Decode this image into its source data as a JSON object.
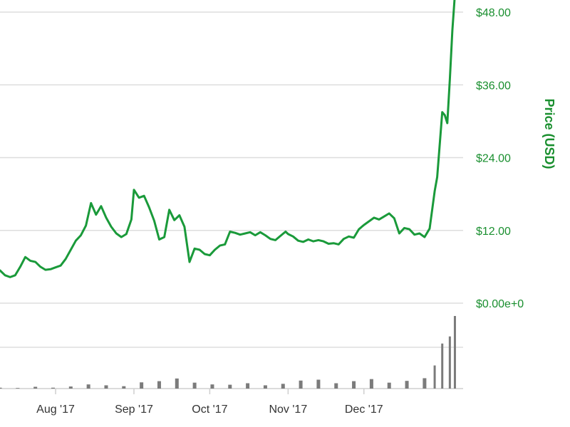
{
  "chart_data": {
    "type": "line",
    "ylabel": "Price (USD)",
    "price_axis": {
      "ticks": [
        0,
        12,
        24,
        36,
        48
      ],
      "tick_labels": [
        "$0.00e+0",
        "$12.00",
        "$24.00",
        "$36.00",
        "$48.00"
      ],
      "ylim": [
        0,
        50
      ]
    },
    "x_axis": {
      "ticks": [
        "2017-08-01",
        "2017-09-01",
        "2017-10-01",
        "2017-11-01",
        "2017-12-01"
      ],
      "tick_labels": [
        "Aug '17",
        "Sep '17",
        "Oct '17",
        "Nov '17",
        "Dec '17"
      ]
    },
    "grid": true,
    "series": [
      {
        "values": [
          [
            "2017-07-10",
            5.4
          ],
          [
            "2017-07-12",
            4.6
          ],
          [
            "2017-07-14",
            4.3
          ],
          [
            "2017-07-16",
            4.6
          ],
          [
            "2017-07-18",
            6.0
          ],
          [
            "2017-07-20",
            7.6
          ],
          [
            "2017-07-22",
            7.0
          ],
          [
            "2017-07-24",
            6.8
          ],
          [
            "2017-07-26",
            6.0
          ],
          [
            "2017-07-28",
            5.5
          ],
          [
            "2017-07-30",
            5.6
          ],
          [
            "2017-08-01",
            5.9
          ],
          [
            "2017-08-03",
            6.2
          ],
          [
            "2017-08-05",
            7.3
          ],
          [
            "2017-08-07",
            8.8
          ],
          [
            "2017-08-09",
            10.3
          ],
          [
            "2017-08-11",
            11.2
          ],
          [
            "2017-08-13",
            12.8
          ],
          [
            "2017-08-15",
            16.5
          ],
          [
            "2017-08-17",
            14.6
          ],
          [
            "2017-08-19",
            16.0
          ],
          [
            "2017-08-21",
            14.1
          ],
          [
            "2017-08-23",
            12.6
          ],
          [
            "2017-08-25",
            11.5
          ],
          [
            "2017-08-27",
            10.9
          ],
          [
            "2017-08-29",
            11.4
          ],
          [
            "2017-08-31",
            13.8
          ],
          [
            "2017-09-01",
            18.7
          ],
          [
            "2017-09-03",
            17.4
          ],
          [
            "2017-09-05",
            17.7
          ],
          [
            "2017-09-07",
            15.8
          ],
          [
            "2017-09-09",
            13.6
          ],
          [
            "2017-09-11",
            10.5
          ],
          [
            "2017-09-13",
            10.9
          ],
          [
            "2017-09-15",
            15.4
          ],
          [
            "2017-09-17",
            13.7
          ],
          [
            "2017-09-19",
            14.5
          ],
          [
            "2017-09-21",
            12.6
          ],
          [
            "2017-09-23",
            6.8
          ],
          [
            "2017-09-25",
            9.0
          ],
          [
            "2017-09-27",
            8.8
          ],
          [
            "2017-09-29",
            8.1
          ],
          [
            "2017-10-01",
            7.9
          ],
          [
            "2017-10-03",
            8.8
          ],
          [
            "2017-10-05",
            9.5
          ],
          [
            "2017-10-07",
            9.7
          ],
          [
            "2017-10-09",
            11.8
          ],
          [
            "2017-10-11",
            11.6
          ],
          [
            "2017-10-13",
            11.3
          ],
          [
            "2017-10-15",
            11.5
          ],
          [
            "2017-10-17",
            11.7
          ],
          [
            "2017-10-19",
            11.2
          ],
          [
            "2017-10-21",
            11.7
          ],
          [
            "2017-10-23",
            11.2
          ],
          [
            "2017-10-25",
            10.6
          ],
          [
            "2017-10-27",
            10.4
          ],
          [
            "2017-10-29",
            11.1
          ],
          [
            "2017-10-31",
            11.8
          ],
          [
            "2017-11-01",
            11.4
          ],
          [
            "2017-11-03",
            11.0
          ],
          [
            "2017-11-05",
            10.3
          ],
          [
            "2017-11-07",
            10.1
          ],
          [
            "2017-11-09",
            10.5
          ],
          [
            "2017-11-11",
            10.2
          ],
          [
            "2017-11-13",
            10.4
          ],
          [
            "2017-11-15",
            10.2
          ],
          [
            "2017-11-17",
            9.8
          ],
          [
            "2017-11-19",
            9.9
          ],
          [
            "2017-11-21",
            9.7
          ],
          [
            "2017-11-23",
            10.6
          ],
          [
            "2017-11-25",
            11.0
          ],
          [
            "2017-11-27",
            10.8
          ],
          [
            "2017-11-29",
            12.2
          ],
          [
            "2017-12-01",
            12.9
          ],
          [
            "2017-12-03",
            13.5
          ],
          [
            "2017-12-05",
            14.1
          ],
          [
            "2017-12-07",
            13.8
          ],
          [
            "2017-12-09",
            14.3
          ],
          [
            "2017-12-11",
            14.8
          ],
          [
            "2017-12-13",
            14.0
          ],
          [
            "2017-12-15",
            11.5
          ],
          [
            "2017-12-17",
            12.4
          ],
          [
            "2017-12-19",
            12.2
          ],
          [
            "2017-12-21",
            11.3
          ],
          [
            "2017-12-23",
            11.5
          ],
          [
            "2017-12-25",
            10.9
          ],
          [
            "2017-12-27",
            12.3
          ],
          [
            "2017-12-29",
            18.5
          ],
          [
            "2017-12-30",
            20.8
          ],
          [
            "2018-01-01",
            31.5
          ],
          [
            "2018-01-02",
            31.0
          ],
          [
            "2018-01-03",
            29.7
          ],
          [
            "2018-01-04",
            37.0
          ],
          [
            "2018-01-05",
            45.0
          ],
          [
            "2018-01-06",
            51.0
          ]
        ]
      }
    ],
    "volume": {
      "values": [
        [
          "2017-07-10",
          0.3
        ],
        [
          "2017-07-17",
          0.2
        ],
        [
          "2017-07-24",
          0.6
        ],
        [
          "2017-07-31",
          0.3
        ],
        [
          "2017-08-07",
          0.7
        ],
        [
          "2017-08-14",
          1.4
        ],
        [
          "2017-08-21",
          1.1
        ],
        [
          "2017-08-28",
          0.8
        ],
        [
          "2017-09-04",
          2.1
        ],
        [
          "2017-09-11",
          2.5
        ],
        [
          "2017-09-18",
          3.4
        ],
        [
          "2017-09-25",
          2.0
        ],
        [
          "2017-10-02",
          1.4
        ],
        [
          "2017-10-09",
          1.3
        ],
        [
          "2017-10-16",
          1.8
        ],
        [
          "2017-10-23",
          1.1
        ],
        [
          "2017-10-30",
          1.6
        ],
        [
          "2017-11-06",
          2.7
        ],
        [
          "2017-11-13",
          3.0
        ],
        [
          "2017-11-20",
          1.8
        ],
        [
          "2017-11-27",
          2.5
        ],
        [
          "2017-12-04",
          3.2
        ],
        [
          "2017-12-11",
          2.0
        ],
        [
          "2017-12-18",
          2.6
        ],
        [
          "2017-12-25",
          3.5
        ],
        [
          "2017-12-29",
          7.8
        ],
        [
          "2018-01-01",
          15.2
        ],
        [
          "2018-01-04",
          17.6
        ],
        [
          "2018-01-06",
          24.5
        ]
      ]
    }
  }
}
